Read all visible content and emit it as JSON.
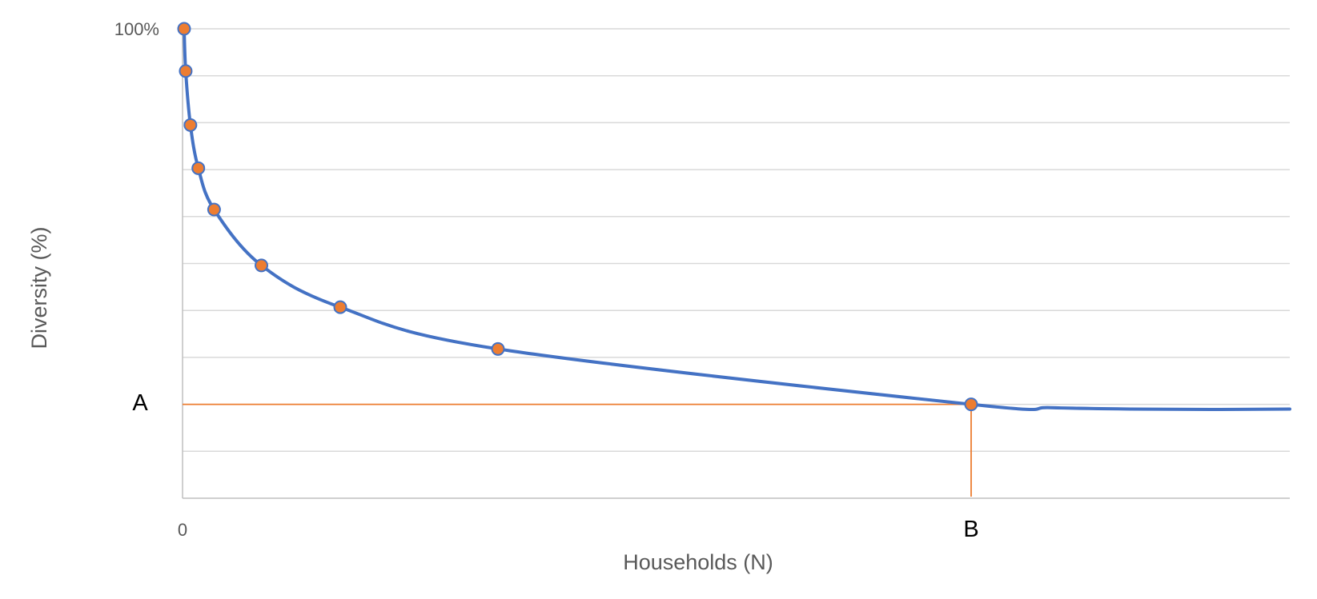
{
  "chart_data": {
    "type": "line",
    "title": "",
    "xlabel": "Households (N)",
    "ylabel": "Diversity (%)",
    "xlim": [
      0,
      140
    ],
    "ylim": [
      0,
      100
    ],
    "y_gridlines": [
      10,
      20,
      30,
      40,
      50,
      60,
      70,
      80,
      90,
      100
    ],
    "x_tick_labels": [
      {
        "x": 0,
        "label": "0"
      }
    ],
    "y_tick_labels": [
      {
        "y": 100,
        "label": "100%"
      }
    ],
    "series": [
      {
        "color": "#4472C4",
        "marker_color": "#ED7D31",
        "smooth": true,
        "points": [
          {
            "x": 0.2,
            "y": 100
          },
          {
            "x": 0.4,
            "y": 91
          },
          {
            "x": 1.0,
            "y": 79.5
          },
          {
            "x": 2.0,
            "y": 70.3
          },
          {
            "x": 4.0,
            "y": 61.5
          },
          {
            "x": 10.0,
            "y": 49.6
          },
          {
            "x": 20.0,
            "y": 40.7
          },
          {
            "x": 40.0,
            "y": 31.8
          },
          {
            "x": 100.0,
            "y": 20.0
          }
        ],
        "tail": [
          {
            "x": 110,
            "y": 19.3
          },
          {
            "x": 120,
            "y": 19.0
          },
          {
            "x": 130,
            "y": 18.9
          },
          {
            "x": 140,
            "y": 19.0
          }
        ]
      }
    ],
    "reference_lines": {
      "color": "#ED7D31",
      "horizontal": {
        "y": 20,
        "label": "A"
      },
      "vertical": {
        "x": 100,
        "label": "B"
      }
    },
    "colors": {
      "gridline": "#D9D9D9",
      "axis": "#BFBFBF"
    }
  }
}
